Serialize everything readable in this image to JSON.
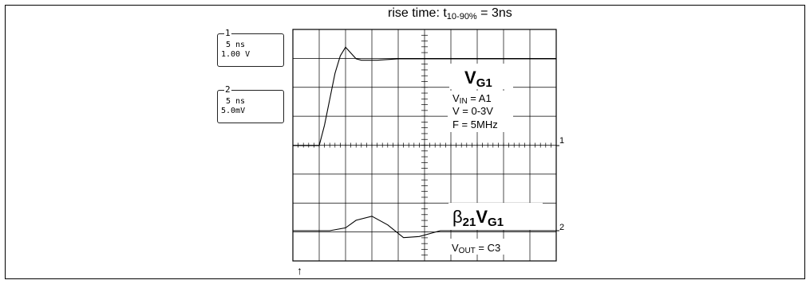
{
  "figure": {
    "title": "",
    "rise_time_label": {
      "prefix": "rise time: t",
      "sub": "10-90%",
      "suffix": " = 3ns"
    }
  },
  "channels": [
    {
      "number": "1",
      "timebase": "5 ns",
      "scale": "1.00 V"
    },
    {
      "number": "2",
      "timebase": "5 ns",
      "scale": "5.0mV"
    }
  ],
  "annotations": {
    "vg1_main": "V",
    "vg1_sub": "G1",
    "vin_main": "V",
    "vin_sub": "IN",
    "vin_rest": " = A1",
    "v_range": "V = 0-3V",
    "freq": "F = 5MHz",
    "beta_main": "β",
    "beta_sub": "21",
    "beta_v": "V",
    "beta_vsub": "G1",
    "vout_main": "V",
    "vout_sub": "OUT",
    "vout_rest": " = C3"
  },
  "markers": {
    "ch1_level": "1",
    "ch2_level": "2",
    "trigger": "↑"
  },
  "chart_data": {
    "type": "line",
    "title": "rise time: t10-90% = 3ns",
    "grid": true,
    "x_divisions": 10,
    "y_divisions": 8,
    "time_per_div_ns": 5,
    "series": [
      {
        "name": "VG1",
        "channel": "1",
        "volts_per_div": 1.0,
        "x_ns": [
          0,
          5,
          6,
          7,
          8,
          9,
          10,
          11,
          12,
          13,
          14,
          16,
          20,
          30,
          40,
          50
        ],
        "y": [
          0,
          0,
          0.7,
          1.6,
          2.5,
          3.1,
          3.4,
          3.2,
          3.0,
          2.95,
          2.95,
          2.95,
          3.0,
          3.0,
          3.0,
          3.0
        ]
      },
      {
        "name": "β21VG1",
        "channel": "2",
        "volts_per_div": 0.005,
        "x_ns": [
          0,
          7,
          10,
          12,
          15,
          18,
          21,
          24,
          28,
          35,
          50
        ],
        "y": [
          0,
          0,
          0.0005,
          0.0018,
          0.0025,
          0.001,
          -0.0012,
          -0.001,
          0,
          0,
          0
        ]
      }
    ]
  }
}
